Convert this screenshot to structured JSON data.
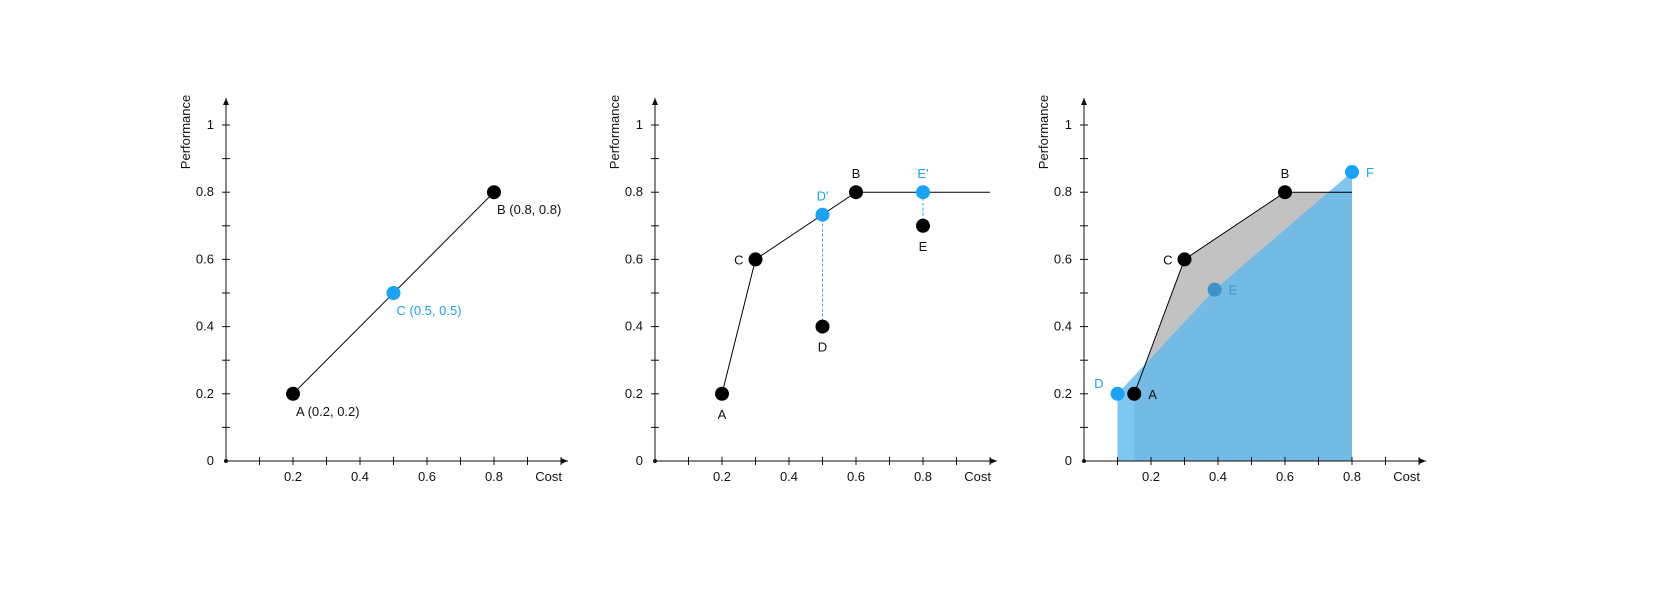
{
  "colors": {
    "black": "#000000",
    "blue": "#1aa3f5",
    "gray_fill": "#c2c2c2",
    "blue_fill": "#5fb8ec",
    "blue_fill_2": "#7aaecb",
    "dim_blue": "#3f91c8"
  },
  "chart_data": [
    {
      "type": "scatter",
      "title": "",
      "xlabel": "Cost",
      "ylabel": "Performance",
      "xlim": [
        0,
        1
      ],
      "ylim": [
        0,
        1
      ],
      "x_ticks": [
        "0.2",
        "0.4",
        "0.6",
        "0.8"
      ],
      "y_ticks": [
        "0",
        "0.2",
        "0.4",
        "0.6",
        "0.8",
        "1"
      ],
      "points": [
        {
          "id": "A",
          "label": "A (0.2, 0.2)",
          "x": 0.2,
          "y": 0.2,
          "color": "black",
          "label_pos": "below-right"
        },
        {
          "id": "C",
          "label": "C (0.5, 0.5)",
          "x": 0.5,
          "y": 0.5,
          "color": "blue",
          "label_pos": "below-right"
        },
        {
          "id": "B",
          "label": "B (0.8, 0.8)",
          "x": 0.8,
          "y": 0.8,
          "color": "black",
          "label_pos": "below-right"
        }
      ],
      "lines": [
        {
          "points": [
            [
              0.2,
              0.2
            ],
            [
              0.8,
              0.8
            ]
          ],
          "style": "solid",
          "color": "black"
        }
      ]
    },
    {
      "type": "scatter",
      "title": "",
      "xlabel": "Cost",
      "ylabel": "Performance",
      "xlim": [
        0,
        1
      ],
      "ylim": [
        0,
        1
      ],
      "x_ticks": [
        "0.2",
        "0.4",
        "0.6",
        "0.8"
      ],
      "y_ticks": [
        "0",
        "0.2",
        "0.4",
        "0.6",
        "0.8",
        "1"
      ],
      "points": [
        {
          "id": "A",
          "label": "A",
          "x": 0.2,
          "y": 0.2,
          "color": "black",
          "label_pos": "below"
        },
        {
          "id": "C",
          "label": "C",
          "x": 0.3,
          "y": 0.6,
          "color": "black",
          "label_pos": "left"
        },
        {
          "id": "B",
          "label": "B",
          "x": 0.6,
          "y": 0.8,
          "color": "black",
          "label_pos": "above"
        },
        {
          "id": "D'",
          "label": "D'",
          "x": 0.5,
          "y": 0.733,
          "color": "blue",
          "label_pos": "above"
        },
        {
          "id": "D",
          "label": "D",
          "x": 0.5,
          "y": 0.4,
          "color": "black",
          "label_pos": "below"
        },
        {
          "id": "E'",
          "label": "E'",
          "x": 0.8,
          "y": 0.8,
          "color": "blue",
          "label_pos": "above"
        },
        {
          "id": "E",
          "label": "E",
          "x": 0.8,
          "y": 0.7,
          "color": "black",
          "label_pos": "below"
        }
      ],
      "lines": [
        {
          "points": [
            [
              0.2,
              0.2
            ],
            [
              0.3,
              0.6
            ],
            [
              0.6,
              0.8
            ],
            [
              1.0,
              0.8
            ]
          ],
          "style": "solid",
          "color": "black"
        },
        {
          "points": [
            [
              0.5,
              0.4
            ],
            [
              0.5,
              0.733
            ]
          ],
          "style": "dashed",
          "color": "blue"
        },
        {
          "points": [
            [
              0.8,
              0.7
            ],
            [
              0.8,
              0.8
            ]
          ],
          "style": "dashed",
          "color": "blue"
        }
      ]
    },
    {
      "type": "area",
      "title": "",
      "xlabel": "Cost",
      "ylabel": "Performance",
      "xlim": [
        0,
        1
      ],
      "ylim": [
        0,
        1
      ],
      "x_ticks": [
        "0.2",
        "0.4",
        "0.6",
        "0.8"
      ],
      "y_ticks": [
        "0",
        "0.2",
        "0.4",
        "0.6",
        "0.8",
        "1"
      ],
      "regions": [
        {
          "name": "gray",
          "color": "gray_fill",
          "opacity": 1,
          "points": [
            [
              0.15,
              0
            ],
            [
              0.15,
              0.2
            ],
            [
              0.3,
              0.6
            ],
            [
              0.6,
              0.8
            ],
            [
              0.8,
              0.8
            ],
            [
              0.8,
              0
            ]
          ]
        },
        {
          "name": "blue",
          "color": "blue_fill",
          "opacity": 0.8,
          "points": [
            [
              0.1,
              0
            ],
            [
              0.1,
              0.2
            ],
            [
              0.39,
              0.51
            ],
            [
              0.8,
              0.86
            ],
            [
              0.8,
              0
            ]
          ]
        }
      ],
      "points": [
        {
          "id": "D",
          "label": "D",
          "x": 0.1,
          "y": 0.2,
          "color": "blue",
          "label_pos": "above-left"
        },
        {
          "id": "A",
          "label": "A",
          "x": 0.15,
          "y": 0.2,
          "color": "black",
          "label_pos": "right"
        },
        {
          "id": "C",
          "label": "C",
          "x": 0.3,
          "y": 0.6,
          "color": "black",
          "label_pos": "left"
        },
        {
          "id": "B",
          "label": "B",
          "x": 0.6,
          "y": 0.8,
          "color": "black",
          "label_pos": "above"
        },
        {
          "id": "E",
          "label": "E",
          "x": 0.39,
          "y": 0.51,
          "color": "dim_blue",
          "label_pos": "right"
        },
        {
          "id": "F",
          "label": "F",
          "x": 0.8,
          "y": 0.86,
          "color": "blue",
          "label_pos": "right"
        }
      ],
      "lines": [
        {
          "points": [
            [
              0.15,
              0.2
            ],
            [
              0.3,
              0.6
            ],
            [
              0.6,
              0.8
            ],
            [
              0.8,
              0.8
            ]
          ],
          "style": "solid",
          "color": "black"
        }
      ]
    }
  ]
}
